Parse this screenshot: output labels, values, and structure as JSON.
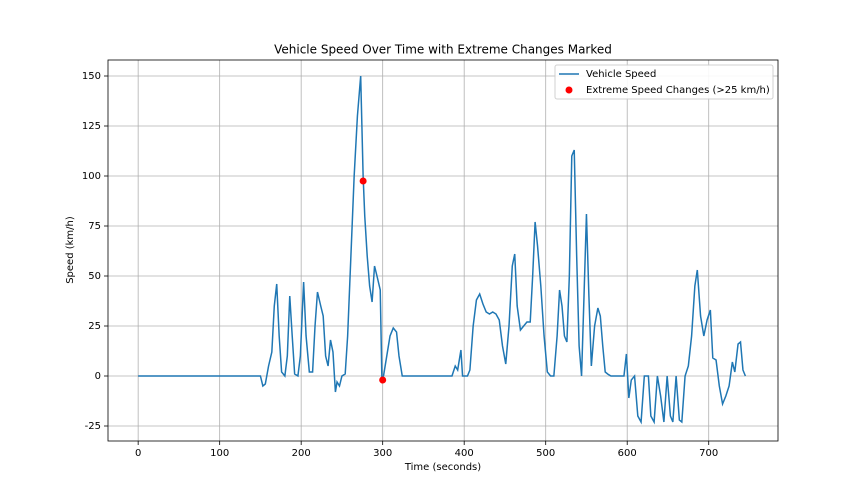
{
  "chart_data": {
    "type": "line",
    "title": "Vehicle Speed Over Time with Extreme Changes Marked",
    "x_label": "Time (seconds)",
    "y_label": "Speed (km/h)",
    "xlim": [
      -37,
      785
    ],
    "ylim": [
      -32.5,
      158
    ],
    "xticks": [
      0,
      100,
      200,
      300,
      400,
      500,
      600,
      700
    ],
    "yticks": [
      -25,
      0,
      25,
      50,
      75,
      100,
      125,
      150
    ],
    "grid": true,
    "legend": "upper right",
    "series": [
      {
        "name": "Vehicle Speed",
        "color": "#1f77b4",
        "mode": "line",
        "x": [
          0,
          150,
          153,
          156,
          160,
          164,
          167,
          170,
          173,
          176,
          180,
          183,
          186,
          189,
          192,
          196,
          199,
          203,
          206,
          210,
          214,
          217,
          220,
          224,
          227,
          230,
          233,
          236,
          239,
          242,
          244,
          247,
          250,
          254,
          257,
          261,
          265,
          269,
          273,
          276,
          278,
          281,
          284,
          287,
          290,
          293,
          297,
          299,
          301,
          305,
          309,
          313,
          317,
          320,
          324,
          330,
          385,
          389,
          392,
          396,
          398,
          404,
          407,
          411,
          415,
          419,
          423,
          427,
          431,
          435,
          439,
          443,
          447,
          451,
          455,
          459,
          462,
          465,
          469,
          473,
          477,
          481,
          484,
          487,
          490,
          494,
          498,
          502,
          506,
          510,
          514,
          517,
          520,
          523,
          526,
          529,
          532,
          535,
          538,
          541,
          544,
          547,
          550,
          553,
          556,
          560,
          564,
          567,
          570,
          573,
          576,
          580,
          596,
          599,
          602,
          605,
          609,
          613,
          617,
          621,
          626,
          629,
          633,
          637,
          641,
          645,
          649,
          653,
          656,
          660,
          664,
          667,
          671,
          675,
          679,
          683,
          686,
          690,
          694,
          698,
          702,
          705,
          709,
          713,
          717,
          721,
          725,
          729,
          732,
          736,
          739,
          742,
          745
        ],
        "values": [
          0,
          0,
          -5,
          -4,
          5,
          12,
          35,
          46,
          20,
          2,
          0,
          10,
          40,
          20,
          1,
          0,
          10,
          47,
          20,
          2,
          2,
          25,
          42,
          35,
          30,
          10,
          5,
          18,
          12,
          -8,
          -3,
          -5,
          0,
          1,
          20,
          60,
          100,
          130,
          150,
          100,
          80,
          60,
          45,
          37,
          55,
          50,
          43,
          -1,
          0,
          10,
          20,
          24,
          22,
          10,
          0,
          0,
          0,
          5,
          3,
          13,
          0,
          0,
          3,
          25,
          38,
          41,
          36,
          32,
          31,
          32,
          31,
          28,
          15,
          6,
          25,
          55,
          61,
          35,
          23,
          25,
          27,
          27,
          50,
          77,
          65,
          45,
          20,
          2,
          0,
          0,
          20,
          43,
          35,
          20,
          17,
          50,
          110,
          113,
          60,
          15,
          0,
          40,
          81,
          40,
          5,
          25,
          34,
          30,
          15,
          2,
          1,
          0,
          0,
          11,
          -11,
          -2,
          0,
          -20,
          -23,
          0,
          0,
          -20,
          -23,
          0,
          -10,
          -23,
          0,
          -20,
          -23,
          0,
          -22,
          -23,
          0,
          5,
          20,
          45,
          53,
          30,
          20,
          28,
          33,
          9,
          8,
          -5,
          -14,
          -10,
          -5,
          7,
          2,
          16,
          17,
          3,
          0
        ]
      },
      {
        "name": "Extreme Speed Changes (>25 km/h)",
        "color": "#ff0000",
        "mode": "scatter",
        "x": [
          276,
          300
        ],
        "values": [
          97.5,
          -2
        ]
      }
    ]
  }
}
